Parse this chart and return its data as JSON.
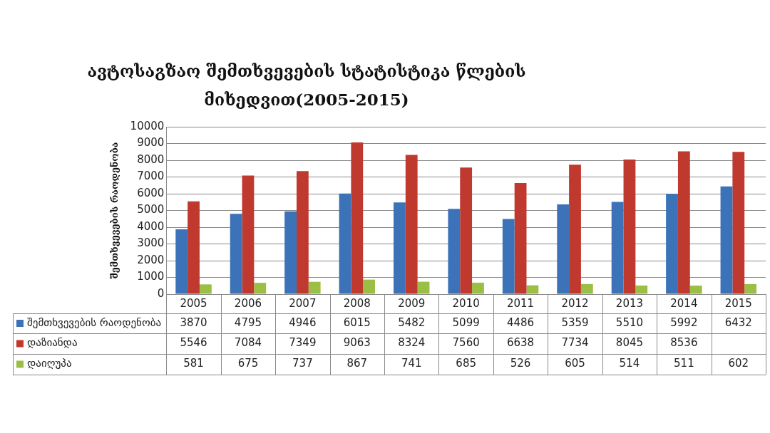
{
  "chart_data": {
    "type": "bar",
    "title": "ავტოსაგზაო შემთხვევების სტატისტიკა წლების მიხედვით(2005-2015)",
    "ylabel": "შემთხვევების რაოდენობა",
    "categories": [
      "2005",
      "2006",
      "2007",
      "2008",
      "2009",
      "2010",
      "2011",
      "2012",
      "2013",
      "2014",
      "2015"
    ],
    "series": [
      {
        "name": "შემთხვევების რაოდენობა",
        "color": "#3b72b8",
        "values": [
          3870,
          4795,
          4946,
          6015,
          5482,
          5099,
          4486,
          5359,
          5510,
          5992,
          6432
        ],
        "value_labels": [
          "3870",
          "4795",
          "4946",
          "6015",
          "5482",
          "5099",
          "4486",
          "5359",
          "5510",
          "5992",
          "6432"
        ]
      },
      {
        "name": "დაზიანდა",
        "color": "#c0392f",
        "values": [
          5546,
          7084,
          7349,
          9063,
          8324,
          7560,
          6638,
          7734,
          8045,
          8536,
          8500
        ],
        "value_labels": [
          "5546",
          "7084",
          "7349",
          "9063",
          "8324",
          "7560",
          "6638",
          "7734",
          "8045",
          "8536",
          null
        ]
      },
      {
        "name": "დაიღუპა",
        "color": "#9bbf45",
        "values": [
          581,
          675,
          737,
          867,
          741,
          685,
          526,
          605,
          514,
          511,
          602
        ],
        "value_labels": [
          "581",
          "675",
          "737",
          "867",
          "741",
          "685",
          "526",
          "605",
          "514",
          "511",
          "602"
        ]
      }
    ],
    "ylim": [
      0,
      10000
    ],
    "yticks": [
      0,
      1000,
      2000,
      3000,
      4000,
      5000,
      6000,
      7000,
      8000,
      9000,
      10000
    ],
    "grid": "y",
    "legend": "bottom"
  }
}
